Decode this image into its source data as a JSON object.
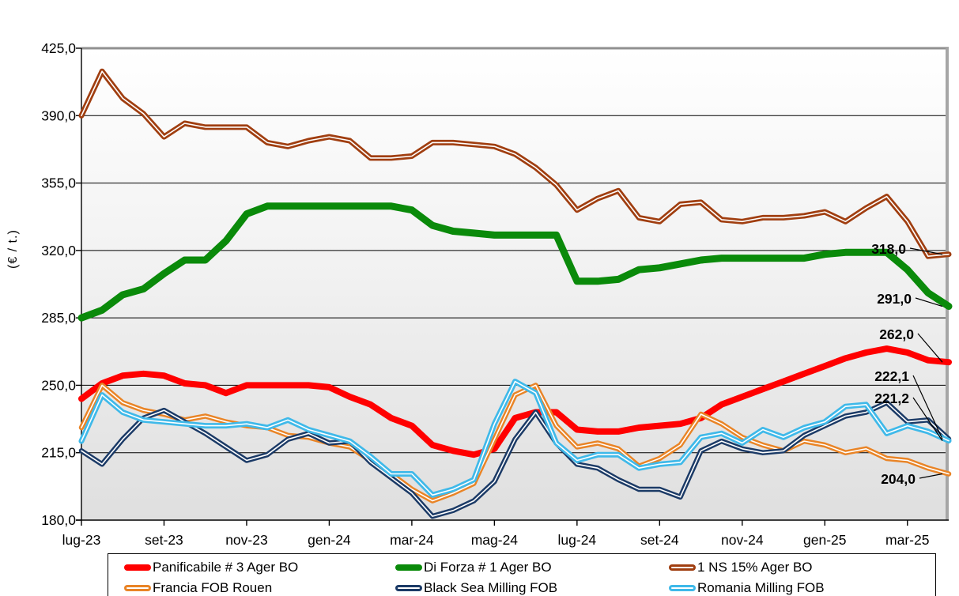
{
  "chart_data": {
    "type": "line",
    "title": "",
    "ylabel": "(€ / t.)",
    "ylim": [
      180,
      425
    ],
    "grid": "horizontal",
    "legend_position": "bottom",
    "decimal_separator": ",",
    "y_ticks": {
      "values": [
        425,
        390,
        355,
        320,
        285,
        250,
        215,
        180
      ],
      "labels": [
        "425,0",
        "390,0",
        "355,0",
        "320,0",
        "285,0",
        "250,0",
        "215,0",
        "180,0"
      ]
    },
    "x_tick_labels": [
      "lug-23",
      "set-23",
      "nov-23",
      "gen-24",
      "mar-24",
      "mag-24",
      "lug-24",
      "set-24",
      "nov-24",
      "gen-25",
      "mar-25"
    ],
    "x_ticks_every_n_points": 4,
    "points_per_month": 2,
    "colors": {
      "gridline": "#000000",
      "plot_border_top": "#909090",
      "plot_border_right": "#a6a6a6",
      "plot_bg_top": "#ffffff",
      "plot_bg_bottom": "#dfdfdf",
      "end_label_text": "#000000"
    },
    "series": [
      {
        "name": "Panificabile # 3 Ager BO",
        "color": "#ff0000",
        "line_style": "solid",
        "end_label": "262,0",
        "values": [
          243,
          251,
          255,
          256,
          255,
          251,
          250,
          246,
          250,
          250,
          250,
          250,
          249,
          244,
          240,
          233,
          229,
          219,
          216,
          214,
          217,
          233,
          236,
          236,
          227,
          226,
          226,
          228,
          229,
          230,
          233,
          240,
          244,
          248,
          252,
          256,
          260,
          264,
          267,
          269,
          267,
          263,
          262
        ]
      },
      {
        "name": "Di Forza # 1 Ager BO",
        "color": "#0a8a0a",
        "line_style": "solid",
        "end_label": "291,0",
        "values": [
          285,
          289,
          297,
          300,
          308,
          315,
          315,
          325,
          339,
          343,
          343,
          343,
          343,
          343,
          343,
          343,
          341,
          333,
          330,
          329,
          328,
          328,
          328,
          328,
          304,
          304,
          305,
          310,
          311,
          313,
          315,
          316,
          316,
          316,
          316,
          316,
          318,
          319,
          319,
          319,
          310,
          298,
          291
        ]
      },
      {
        "name": "1 NS 15% Ager BO",
        "color": "#a03e10",
        "line_style": "double-white-center",
        "end_label": "318,0",
        "values": [
          390,
          413,
          399,
          391,
          379,
          386,
          384,
          384,
          384,
          376,
          374,
          377,
          379,
          377,
          368,
          368,
          369,
          376,
          376,
          375,
          374,
          370,
          363,
          354,
          341,
          347,
          351,
          337,
          335,
          344,
          345,
          336,
          335,
          337,
          337,
          338,
          340,
          335,
          342,
          348,
          335,
          317,
          318
        ]
      },
      {
        "name": "Francia FOB Rouen",
        "color": "#e98426",
        "line_style": "double-white-center",
        "end_label": "204,0",
        "values": [
          228,
          250,
          241,
          237,
          235,
          232,
          234,
          231,
          229,
          228,
          224,
          223,
          220,
          218,
          211,
          204,
          196,
          190,
          194,
          199,
          222,
          245,
          250,
          229,
          218,
          220,
          217,
          208,
          212,
          219,
          235,
          230,
          223,
          219,
          216,
          221,
          219,
          215,
          217,
          212,
          211,
          207,
          204
        ]
      },
      {
        "name": "Black Sea Milling FOB",
        "color": "#1b3a66",
        "line_style": "double-white-center",
        "end_label": "222,1",
        "values": [
          216,
          209,
          222,
          233,
          237,
          231,
          225,
          218,
          211,
          214,
          222,
          225,
          220,
          221,
          210,
          202,
          194,
          182,
          185,
          190,
          200,
          222,
          236,
          220,
          209,
          207,
          201,
          196,
          196,
          192,
          216,
          221,
          217,
          215,
          216,
          224,
          229,
          234,
          236,
          241,
          231,
          232,
          222.1
        ]
      },
      {
        "name": "Romania Milling FOB",
        "color": "#3fb9e9",
        "line_style": "double-white-center",
        "end_label": "221,2",
        "values": [
          221,
          245,
          236,
          232,
          231,
          230,
          229,
          229,
          230,
          228,
          232,
          227,
          224,
          221,
          213,
          204,
          204,
          193,
          196,
          201,
          230,
          252,
          246,
          220,
          211,
          214,
          214,
          207,
          209,
          210,
          223,
          225,
          220,
          227,
          223,
          228,
          231,
          239,
          240,
          225,
          229,
          226,
          221.2
        ]
      }
    ]
  }
}
